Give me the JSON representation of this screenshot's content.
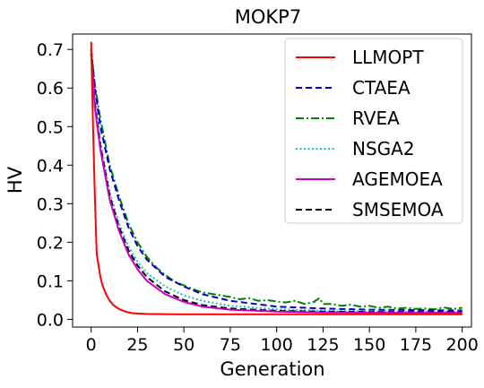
{
  "chart_data": {
    "type": "line",
    "title": "MOKP7",
    "xlabel": "Generation",
    "ylabel": "HV",
    "xlim": [
      -10,
      205
    ],
    "ylim": [
      -0.02,
      0.74
    ],
    "xticks": [
      0,
      25,
      50,
      75,
      100,
      125,
      150,
      175,
      200
    ],
    "yticks": [
      0.0,
      0.1,
      0.2,
      0.3,
      0.4,
      0.5,
      0.6,
      0.7
    ],
    "xtick_labels": [
      "0",
      "25",
      "50",
      "75",
      "100",
      "125",
      "150",
      "175",
      "200"
    ],
    "ytick_labels": [
      "0.0",
      "0.1",
      "0.2",
      "0.3",
      "0.4",
      "0.5",
      "0.6",
      "0.7"
    ],
    "legend_position": "top-right",
    "grid": false,
    "series": [
      {
        "name": "LLMOPT",
        "color": "#ff0000",
        "dash": "solid",
        "x": [
          0,
          1,
          2,
          3,
          4,
          5,
          6,
          8,
          10,
          12,
          15,
          18,
          20,
          22,
          25,
          30,
          40,
          50,
          75,
          100,
          125,
          150,
          175,
          200
        ],
        "y": [
          0.72,
          0.5,
          0.32,
          0.17,
          0.14,
          0.11,
          0.09,
          0.065,
          0.048,
          0.037,
          0.027,
          0.021,
          0.018,
          0.016,
          0.015,
          0.014,
          0.0135,
          0.013,
          0.013,
          0.013,
          0.013,
          0.013,
          0.013,
          0.013
        ]
      },
      {
        "name": "CTAEA",
        "color": "#0000cc",
        "dash": "dashed",
        "x": [
          0,
          2,
          5,
          10,
          15,
          20,
          25,
          30,
          40,
          50,
          60,
          75,
          100,
          125,
          150,
          175,
          200
        ],
        "y": [
          0.7,
          0.6,
          0.5,
          0.39,
          0.31,
          0.24,
          0.19,
          0.155,
          0.11,
          0.085,
          0.065,
          0.048,
          0.033,
          0.028,
          0.025,
          0.024,
          0.023
        ]
      },
      {
        "name": "RVEA",
        "color": "#008000",
        "dash": "dashdot",
        "x": [
          0,
          2,
          5,
          10,
          15,
          20,
          25,
          30,
          35,
          40,
          45,
          50,
          55,
          60,
          65,
          70,
          75,
          80,
          85,
          90,
          95,
          100,
          105,
          110,
          115,
          120,
          123,
          125,
          130,
          135,
          140,
          145,
          150,
          155,
          160,
          165,
          170,
          175,
          180,
          185,
          190,
          195,
          200
        ],
        "y": [
          0.7,
          0.61,
          0.52,
          0.4,
          0.32,
          0.25,
          0.2,
          0.162,
          0.135,
          0.115,
          0.098,
          0.088,
          0.078,
          0.07,
          0.066,
          0.062,
          0.058,
          0.052,
          0.055,
          0.048,
          0.05,
          0.046,
          0.044,
          0.048,
          0.04,
          0.045,
          0.055,
          0.04,
          0.04,
          0.035,
          0.038,
          0.033,
          0.035,
          0.03,
          0.033,
          0.028,
          0.03,
          0.027,
          0.028,
          0.026,
          0.031,
          0.027,
          0.03
        ]
      },
      {
        "name": "NSGA2",
        "color": "#17becf",
        "dash": "dotted",
        "x": [
          0,
          2,
          5,
          10,
          15,
          20,
          25,
          30,
          40,
          50,
          60,
          75,
          100,
          125,
          150,
          175,
          200
        ],
        "y": [
          0.69,
          0.57,
          0.46,
          0.33,
          0.25,
          0.19,
          0.15,
          0.12,
          0.085,
          0.062,
          0.048,
          0.035,
          0.026,
          0.022,
          0.021,
          0.02,
          0.02
        ]
      },
      {
        "name": "AGEMOEA",
        "color": "#cc00cc",
        "dash": "solid",
        "x": [
          0,
          2,
          5,
          10,
          15,
          20,
          25,
          30,
          40,
          50,
          60,
          75,
          100,
          125,
          150,
          175,
          200
        ],
        "y": [
          0.69,
          0.55,
          0.44,
          0.31,
          0.23,
          0.17,
          0.13,
          0.1,
          0.065,
          0.045,
          0.033,
          0.025,
          0.02,
          0.018,
          0.017,
          0.017,
          0.017
        ]
      },
      {
        "name": "SMSEMOA",
        "color": "#000000",
        "dash": "dashed",
        "x": [
          0,
          2,
          5,
          10,
          15,
          20,
          25,
          30,
          40,
          50,
          60,
          75,
          100,
          125,
          150,
          175,
          200
        ],
        "y": [
          0.69,
          0.56,
          0.45,
          0.32,
          0.24,
          0.18,
          0.14,
          0.11,
          0.072,
          0.05,
          0.037,
          0.028,
          0.022,
          0.02,
          0.019,
          0.019,
          0.019
        ]
      }
    ]
  }
}
